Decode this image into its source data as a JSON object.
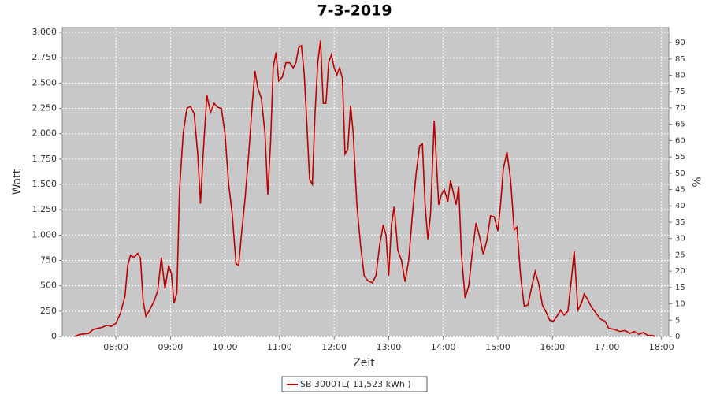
{
  "chart_data": {
    "type": "line",
    "title": "7-3-2019",
    "x_label": "Zeit",
    "y_label": "Watt",
    "y2_label": "%",
    "xlim": [
      "07:01",
      "18:08"
    ],
    "xticks": [
      "08:00",
      "09:00",
      "10:00",
      "11:00",
      "12:00",
      "13:00",
      "14:00",
      "15:00",
      "16:00",
      "17:00",
      "18:00"
    ],
    "ylim": [
      0,
      3047
    ],
    "yticks": [
      0,
      250,
      500,
      750,
      {
        "value": 1000,
        "label": "1.000"
      },
      {
        "value": 1250,
        "label": "1.250"
      },
      {
        "value": 1500,
        "label": "1.500"
      },
      {
        "value": 1750,
        "label": "1.750"
      },
      {
        "value": 2000,
        "label": "2.000"
      },
      {
        "value": 2250,
        "label": "2.250"
      },
      {
        "value": 2500,
        "label": "2.500"
      },
      {
        "value": 2750,
        "label": "2.750"
      },
      {
        "value": 3000,
        "label": "3.000"
      }
    ],
    "y2lim": [
      0,
      94.6
    ],
    "y2ticks": [
      0,
      5,
      10,
      15,
      20,
      25,
      30,
      35,
      40,
      45,
      50,
      55,
      60,
      65,
      70,
      75,
      80,
      85,
      90
    ],
    "grid": true,
    "legend": "bottom",
    "x": [
      "07:15",
      "07:20",
      "07:30",
      "07:35",
      "07:40",
      "07:45",
      "07:50",
      "07:55",
      "08:00",
      "08:05",
      "08:10",
      "08:13",
      "08:16",
      "08:20",
      "08:24",
      "08:27",
      "08:30",
      "08:33",
      "08:37",
      "08:42",
      "08:46",
      "08:50",
      "08:54",
      "08:58",
      "09:01",
      "09:04",
      "09:07",
      "09:10",
      "09:14",
      "09:18",
      "09:22",
      "09:26",
      "09:30",
      "09:33",
      "09:36",
      "09:40",
      "09:44",
      "09:48",
      "09:52",
      "09:56",
      "10:00",
      "10:04",
      "10:08",
      "10:12",
      "10:15",
      "10:18",
      "10:22",
      "10:26",
      "10:30",
      "10:33",
      "10:36",
      "10:40",
      "10:44",
      "10:47",
      "10:50",
      "10:53",
      "10:56",
      "10:59",
      "11:03",
      "11:07",
      "11:11",
      "11:15",
      "11:18",
      "11:21",
      "11:24",
      "11:27",
      "11:30",
      "11:33",
      "11:36",
      "11:39",
      "11:42",
      "11:45",
      "11:48",
      "11:51",
      "11:54",
      "11:57",
      "12:00",
      "12:03",
      "12:06",
      "12:09",
      "12:12",
      "12:15",
      "12:18",
      "12:21",
      "12:25",
      "12:29",
      "12:33",
      "12:37",
      "12:42",
      "12:46",
      "12:50",
      "12:54",
      "12:57",
      "13:00",
      "13:03",
      "13:06",
      "13:10",
      "13:14",
      "13:18",
      "13:22",
      "13:26",
      "13:30",
      "13:34",
      "13:37",
      "13:40",
      "13:43",
      "13:46",
      "13:50",
      "13:55",
      "13:58",
      "14:01",
      "14:05",
      "14:08",
      "14:11",
      "14:14",
      "14:17",
      "14:20",
      "14:24",
      "14:28",
      "14:32",
      "14:36",
      "14:40",
      "14:44",
      "14:48",
      "14:52",
      "14:56",
      "15:00",
      "15:03",
      "15:06",
      "15:10",
      "15:14",
      "15:18",
      "15:21",
      "15:25",
      "15:29",
      "15:33",
      "15:37",
      "15:41",
      "15:45",
      "15:49",
      "15:53",
      "15:57",
      "16:01",
      "16:05",
      "16:09",
      "16:13",
      "16:17",
      "16:21",
      "16:24",
      "16:28",
      "16:32",
      "16:35",
      "16:39",
      "16:43",
      "16:48",
      "16:53",
      "16:58",
      "17:02",
      "17:08",
      "17:14",
      "17:20",
      "17:25",
      "17:30",
      "17:35",
      "17:40",
      "17:45",
      "17:50",
      "17:53"
    ],
    "series": [
      {
        "name": "SB 3000TL( 11,523 kWh )",
        "color": "#c00000",
        "values": [
          0,
          20,
          30,
          70,
          80,
          90,
          110,
          100,
          130,
          230,
          400,
          700,
          800,
          780,
          820,
          770,
          350,
          200,
          260,
          350,
          450,
          780,
          470,
          700,
          620,
          330,
          430,
          1450,
          2000,
          2250,
          2270,
          2200,
          1800,
          1310,
          1800,
          2380,
          2210,
          2300,
          2260,
          2250,
          2000,
          1500,
          1200,
          720,
          700,
          1000,
          1350,
          1800,
          2300,
          2620,
          2450,
          2350,
          2000,
          1400,
          1900,
          2650,
          2800,
          2520,
          2560,
          2700,
          2700,
          2650,
          2700,
          2850,
          2870,
          2600,
          2100,
          1550,
          1500,
          2200,
          2700,
          2920,
          2300,
          2300,
          2700,
          2780,
          2650,
          2580,
          2650,
          2550,
          1800,
          1850,
          2280,
          2000,
          1300,
          900,
          600,
          550,
          530,
          600,
          900,
          1100,
          1000,
          600,
          1100,
          1280,
          850,
          750,
          540,
          750,
          1200,
          1600,
          1880,
          1900,
          1300,
          960,
          1200,
          2130,
          1300,
          1400,
          1450,
          1330,
          1540,
          1420,
          1300,
          1480,
          800,
          380,
          500,
          830,
          1120,
          980,
          810,
          950,
          1190,
          1180,
          1040,
          1300,
          1650,
          1820,
          1550,
          1050,
          1080,
          600,
          300,
          310,
          480,
          640,
          520,
          310,
          240,
          160,
          150,
          200,
          260,
          210,
          250,
          580,
          840,
          260,
          330,
          420,
          360,
          290,
          230,
          170,
          150,
          80,
          70,
          50,
          60,
          30,
          50,
          20,
          40,
          10,
          10,
          0
        ]
      }
    ]
  }
}
